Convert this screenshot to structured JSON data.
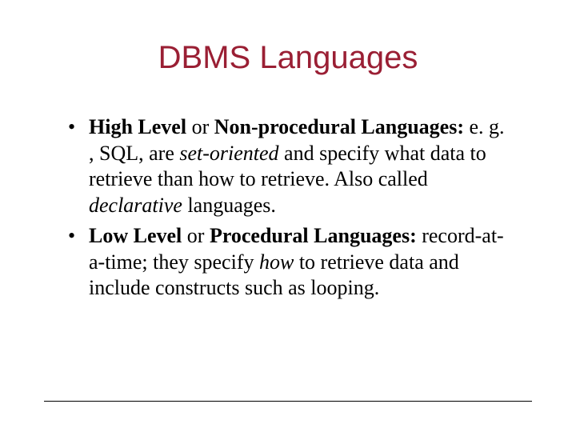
{
  "title_color": "#9a1f34",
  "title": "DBMS Languages",
  "bullets": [
    {
      "lead_bold": "High Level",
      "mid_plain": " or ",
      "mid_bold": "Non-procedural Languages:",
      "post1": " e. g. , SQL, are ",
      "italic1": "set-oriented",
      "post2": " and specify what data to retrieve than how to retrieve. Also called ",
      "italic2": "declarative",
      "post3": " languages."
    },
    {
      "lead_bold": "Low Level",
      "mid_plain": " or ",
      "mid_bold": "Procedural Languages:",
      "post1": " record-at-a-time; they specify ",
      "italic1": "how",
      "post2": " to retrieve data and include constructs such as looping.",
      "italic2": "",
      "post3": ""
    }
  ]
}
